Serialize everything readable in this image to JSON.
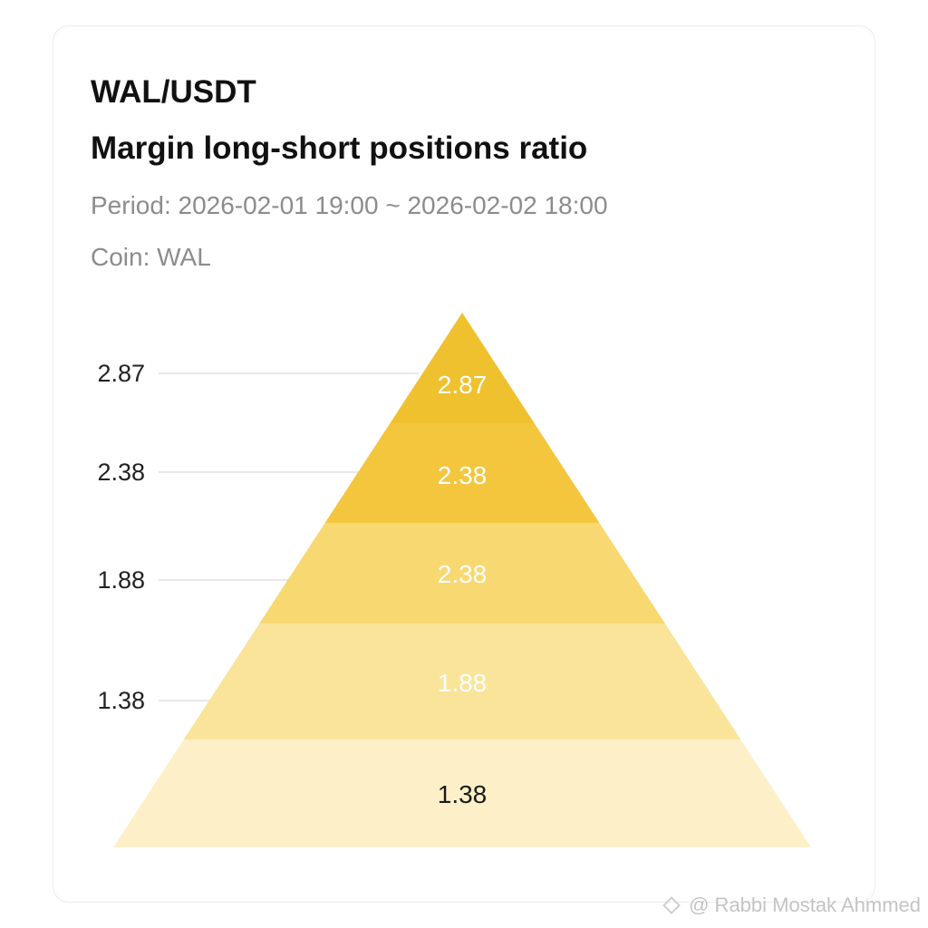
{
  "header": {
    "title": "WAL/USDT",
    "subtitle": "Margin long-short positions ratio",
    "period": "Period: 2026-02-01 19:00 ~ 2026-02-02 18:00",
    "coin": "Coin: WAL"
  },
  "watermark": {
    "text": "@ Rabbi  Mostak Ahmmed",
    "icon": "diamond-logo-icon"
  },
  "colors": {
    "accent": "#F0C12E",
    "tiers": [
      "#F0C12E",
      "#F3C63D",
      "#F8D870",
      "#FAE49A",
      "#FDF0C8"
    ],
    "axis_text": "#222222",
    "gridline": "#d9d9d9"
  },
  "chart_data": {
    "type": "pyramid",
    "axis_ticks": [
      "2.87",
      "2.38",
      "1.88",
      "1.38"
    ],
    "tiers": [
      {
        "label": "2.87",
        "value": 2.87
      },
      {
        "label": "2.38",
        "value": 2.38
      },
      {
        "label": "2.38",
        "value": 2.38
      },
      {
        "label": "1.88",
        "value": 1.88
      },
      {
        "label": "1.38",
        "value": 1.38
      }
    ]
  }
}
